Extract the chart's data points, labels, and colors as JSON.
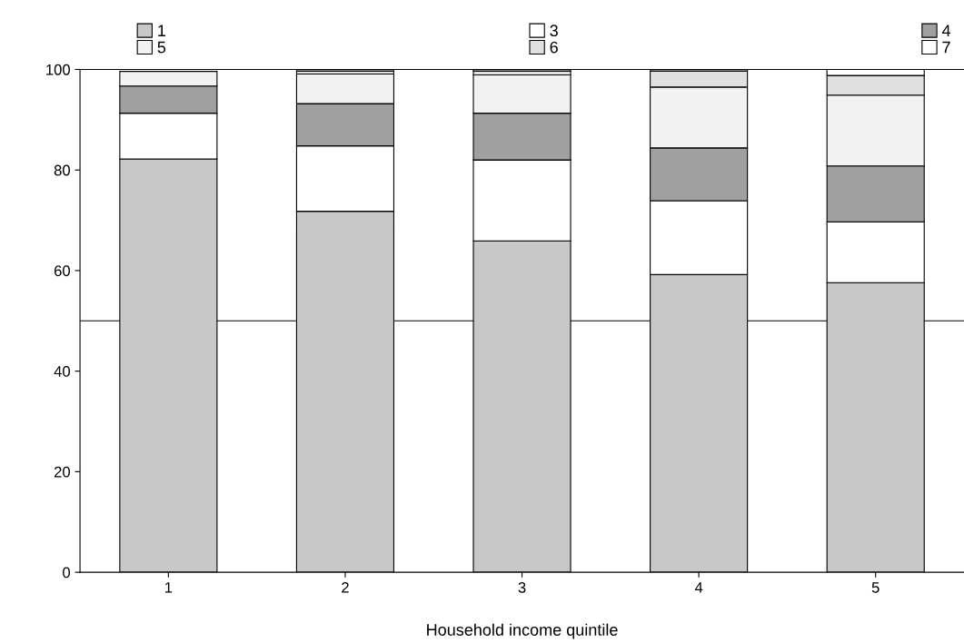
{
  "chart_data": {
    "type": "bar",
    "stacked": true,
    "xlabel": "Household income quintile",
    "categories": [
      "1",
      "2",
      "3",
      "4",
      "5"
    ],
    "series": [
      {
        "name": "1",
        "color": "#c8c8c8",
        "values": [
          82.2,
          71.8,
          65.9,
          59.2,
          57.6
        ]
      },
      {
        "name": "3",
        "color": "#ffffff",
        "values": [
          9.1,
          13.0,
          16.1,
          14.7,
          12.1
        ]
      },
      {
        "name": "4",
        "color": "#a0a0a0",
        "values": [
          5.4,
          8.4,
          9.3,
          10.5,
          11.1
        ]
      },
      {
        "name": "5",
        "color": "#f2f2f2",
        "values": [
          2.9,
          5.9,
          7.6,
          12.1,
          14.1
        ]
      },
      {
        "name": "6",
        "color": "#e0e0e0",
        "values": [
          null,
          0.6,
          0.8,
          3.2,
          3.9
        ]
      },
      {
        "name": "7",
        "color": "#ffffff",
        "values": [
          null,
          0.3,
          0.3,
          0.3,
          1.2
        ]
      }
    ],
    "ylim": [
      0,
      100
    ],
    "yticks": [
      0,
      20,
      40,
      60,
      80,
      100
    ],
    "ref_lines": [
      {
        "axis": "y",
        "value": 50
      }
    ],
    "legend": "top",
    "grid": false
  }
}
